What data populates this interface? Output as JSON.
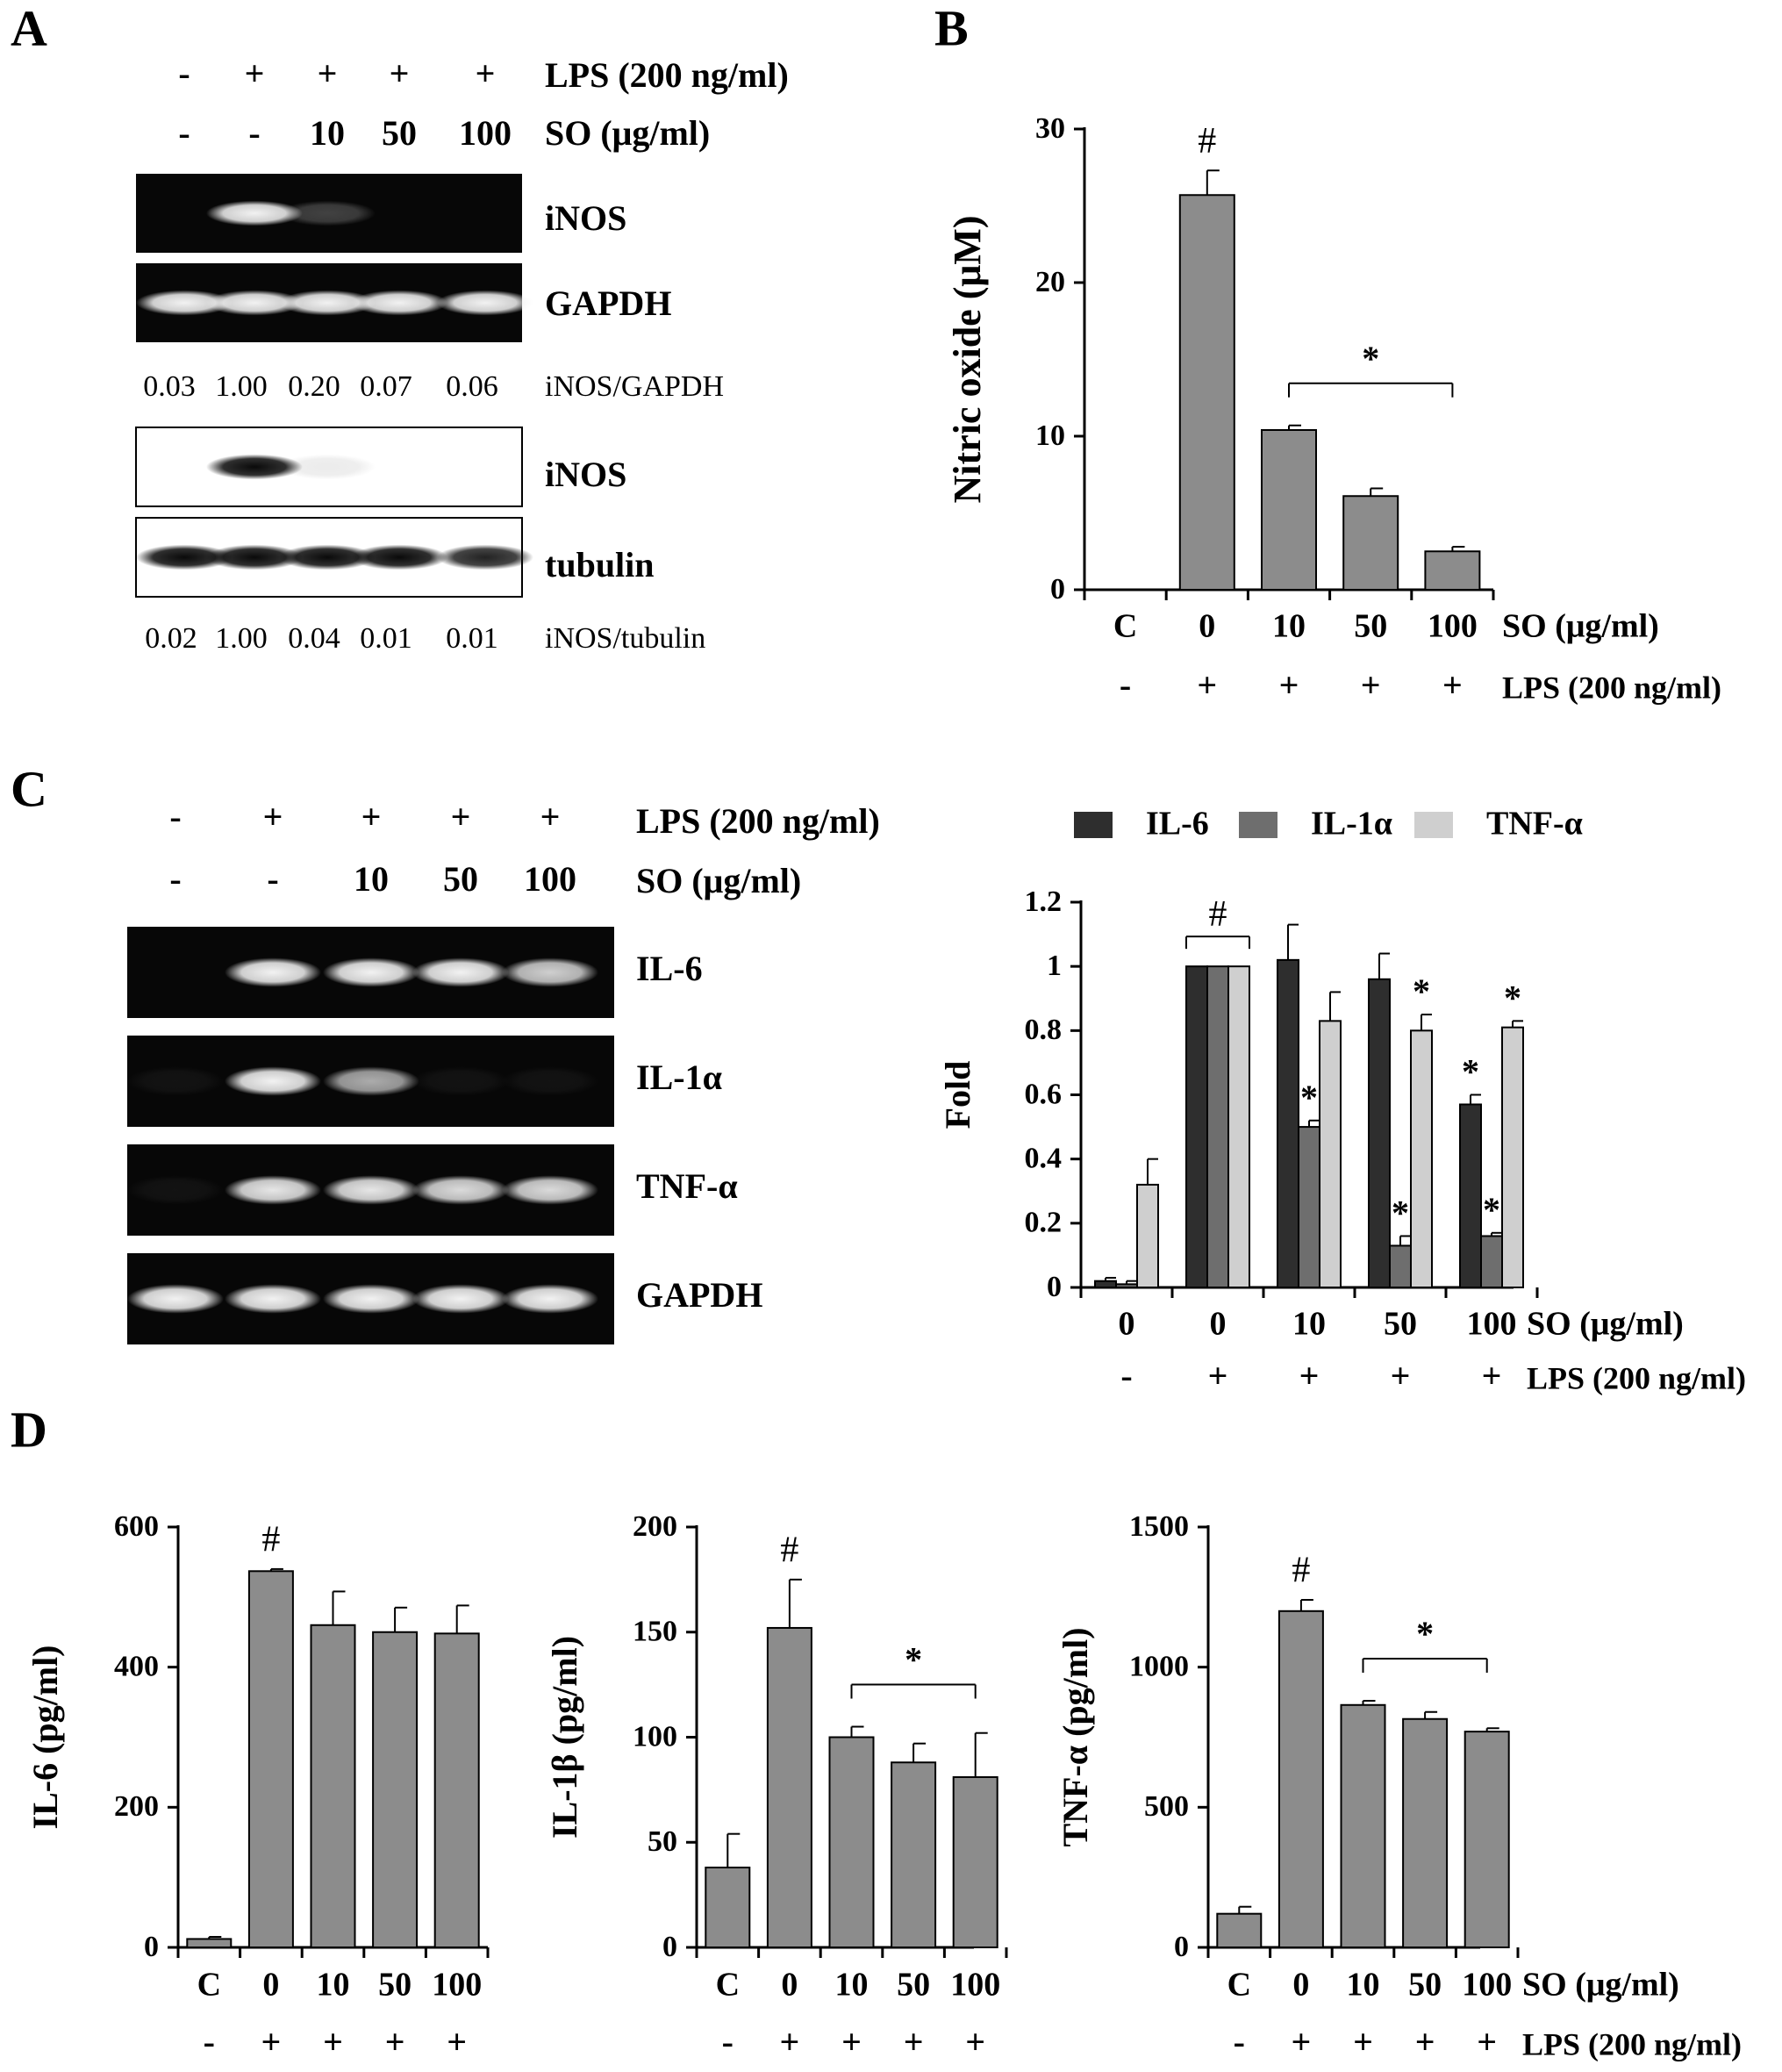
{
  "colors": {
    "bar": "#8c8c8c",
    "il6": "#2e2e2e",
    "il1a": "#6e6e6e",
    "tnf": "#cfcfcf",
    "gel_dark": "#070707",
    "gel_band": "#f2f2f2",
    "blot_band": "#0a0a0a"
  },
  "panelA": {
    "letter": "A",
    "lps_signs": [
      "-",
      "+",
      "+",
      "+",
      "+"
    ],
    "lps_label": "LPS (200 ng/ml)",
    "so_values": [
      "-",
      "-",
      "10",
      "50",
      "100"
    ],
    "so_label": "SO (μg/ml)",
    "gel_labels": [
      "iNOS",
      "GAPDH"
    ],
    "gel_intensity": {
      "iNOS": [
        0.0,
        1.0,
        0.25,
        0.0,
        0.0
      ],
      "GAPDH": [
        1.0,
        1.0,
        1.0,
        1.0,
        1.0
      ]
    },
    "ratio1_values": [
      "0.03",
      "1.00",
      "0.20",
      "0.07",
      "0.06"
    ],
    "ratio1_label": "iNOS/GAPDH",
    "blot_labels": [
      "iNOS",
      "tubulin"
    ],
    "blot_intensity": {
      "iNOS": [
        0.0,
        1.0,
        0.08,
        0.0,
        0.0
      ],
      "tubulin": [
        1.0,
        1.0,
        1.0,
        1.0,
        0.9
      ]
    },
    "ratio2_values": [
      "0.02",
      "1.00",
      "0.04",
      "0.01",
      "0.01"
    ],
    "ratio2_label": "iNOS/tubulin"
  },
  "panelC": {
    "letter": "C",
    "lps_signs": [
      "-",
      "+",
      "+",
      "+",
      "+"
    ],
    "lps_label": "LPS (200 ng/ml)",
    "so_values": [
      "-",
      "-",
      "10",
      "50",
      "100"
    ],
    "so_label": "SO (μg/ml)",
    "gel_labels": [
      "IL-6",
      "IL-1α",
      "TNF-α",
      "GAPDH"
    ],
    "gel_intensity": {
      "IL-6": [
        0.0,
        1.0,
        1.0,
        1.0,
        0.85
      ],
      "IL-1α": [
        0.05,
        1.0,
        0.7,
        0.05,
        0.05
      ],
      "TNF-α": [
        0.05,
        0.95,
        0.95,
        0.9,
        0.9
      ],
      "GAPDH": [
        1.0,
        1.0,
        1.0,
        1.0,
        1.0
      ]
    }
  },
  "panelD": {
    "letter": "D"
  },
  "chart_data": [
    {
      "id": "B",
      "type": "bar",
      "panel_letter": "B",
      "ylabel": "Nitric oxide (μM)",
      "ylim": [
        0,
        30
      ],
      "yticks": [
        0,
        10,
        20,
        30
      ],
      "categories": [
        "C",
        "0",
        "10",
        "50",
        "100"
      ],
      "values": [
        0,
        25.7,
        10.4,
        6.1,
        2.5
      ],
      "errors": [
        0,
        1.6,
        0.3,
        0.5,
        0.3
      ],
      "annotations": {
        "hash_on": [
          1
        ],
        "star_bracket": [
          2,
          4
        ]
      },
      "row1_label": "SO (μg/ml)",
      "row2_signs": [
        "-",
        "+",
        "+",
        "+",
        "+"
      ],
      "row2_label": "LPS (200 ng/ml)"
    },
    {
      "id": "C",
      "type": "bar",
      "ylabel": "Fold",
      "ylim": [
        0,
        1.2
      ],
      "yticks": [
        "0",
        "0.2",
        "0.4",
        "0.6",
        "0.8",
        "1",
        "1.2"
      ],
      "categories": [
        "0",
        "0",
        "10",
        "50",
        "100"
      ],
      "series": [
        {
          "name": "IL-6",
          "values": [
            0.02,
            1.0,
            1.02,
            0.96,
            0.57
          ],
          "errors": [
            0.01,
            0,
            0.11,
            0.08,
            0.03
          ],
          "stars": [
            false,
            false,
            false,
            false,
            true
          ]
        },
        {
          "name": "IL-1α",
          "values": [
            0.01,
            1.0,
            0.5,
            0.13,
            0.16
          ],
          "errors": [
            0.01,
            0,
            0.02,
            0.03,
            0.01
          ],
          "stars": [
            false,
            false,
            true,
            true,
            true
          ]
        },
        {
          "name": "TNF-α",
          "values": [
            0.32,
            1.0,
            0.83,
            0.8,
            0.81
          ],
          "errors": [
            0.08,
            0,
            0.09,
            0.05,
            0.02
          ],
          "stars": [
            false,
            false,
            false,
            true,
            true
          ]
        }
      ],
      "annotations": {
        "hash_bracket_on": 1
      },
      "row1_label": "SO (μg/ml)",
      "row2_signs": [
        "-",
        "+",
        "+",
        "+",
        "+"
      ],
      "row2_label": "LPS (200 ng/ml)"
    },
    {
      "id": "D1",
      "type": "bar",
      "ylabel": "IL-6 (pg/ml)",
      "ylim": [
        0,
        600
      ],
      "yticks": [
        0,
        200,
        400,
        600
      ],
      "categories": [
        "C",
        "0",
        "10",
        "50",
        "100"
      ],
      "values": [
        12,
        537,
        460,
        450,
        448
      ],
      "errors": [
        3,
        3,
        48,
        35,
        40
      ],
      "annotations": {
        "hash_on": [
          1
        ]
      },
      "row2_signs": [
        "-",
        "+",
        "+",
        "+",
        "+"
      ]
    },
    {
      "id": "D2",
      "type": "bar",
      "ylabel": "IL-1β (pg/ml)",
      "ylim": [
        0,
        200
      ],
      "yticks": [
        0,
        50,
        100,
        150,
        200
      ],
      "categories": [
        "C",
        "0",
        "10",
        "50",
        "100"
      ],
      "values": [
        38,
        152,
        100,
        88,
        81
      ],
      "errors": [
        16,
        23,
        5,
        9,
        21
      ],
      "annotations": {
        "hash_on": [
          1
        ],
        "star_bracket": [
          2,
          4
        ]
      },
      "row2_signs": [
        "-",
        "+",
        "+",
        "+",
        "+"
      ]
    },
    {
      "id": "D3",
      "type": "bar",
      "ylabel": "TNF-α (pg/ml)",
      "ylim": [
        0,
        1500
      ],
      "yticks": [
        0,
        500,
        1000,
        1500
      ],
      "categories": [
        "C",
        "0",
        "10",
        "50",
        "100"
      ],
      "values": [
        120,
        1200,
        865,
        815,
        770
      ],
      "errors": [
        25,
        40,
        15,
        25,
        12
      ],
      "annotations": {
        "hash_on": [
          1
        ],
        "star_bracket": [
          2,
          4
        ]
      },
      "row1_label": "SO (μg/ml)",
      "row2_signs": [
        "-",
        "+",
        "+",
        "+",
        "+"
      ],
      "row2_label": "LPS (200 ng/ml)"
    }
  ]
}
